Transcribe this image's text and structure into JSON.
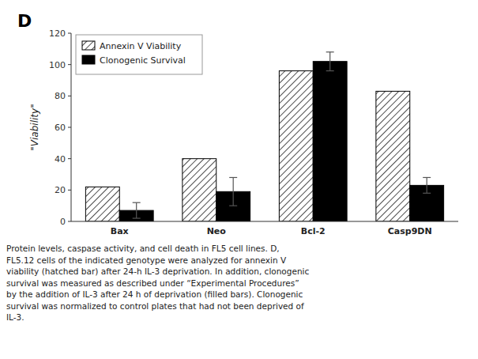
{
  "chart_data": {
    "type": "bar",
    "categories": [
      "Bax",
      "Neo",
      "Bcl-2",
      "Casp9DN"
    ],
    "series": [
      {
        "name": "Annexin V Viability",
        "color": "#ffffff",
        "values": [
          22,
          40,
          96,
          83
        ]
      },
      {
        "name": "Clonogenic Survival",
        "color": "#000000",
        "values": [
          7,
          19,
          102,
          23
        ],
        "errors": [
          5,
          9,
          6,
          5
        ]
      }
    ],
    "ylabel": "\"Viability\"",
    "ylim": [
      0,
      120
    ],
    "yticks": [
      0,
      20,
      40,
      60,
      80,
      100,
      120
    ],
    "grid": false,
    "legend": "upper left",
    "annotations": [
      "D",
      "Protein levels, caspase activity, and cell death in FL5 cell lines. D,\nFL5.12 cells of the indicated genotype were analyzed for annexin V\nviability (hatched bar) after 24-h IL-3 deprivation. In addition, clonogenic\nsurvival was measured as described under “Experimental Procedures”\nby the addition of IL-3 after 24 h of deprivation (filled bars). Clonogenic\nsurvival was normalized to control plates that had not been deprived of\nIL-3."
    ]
  }
}
